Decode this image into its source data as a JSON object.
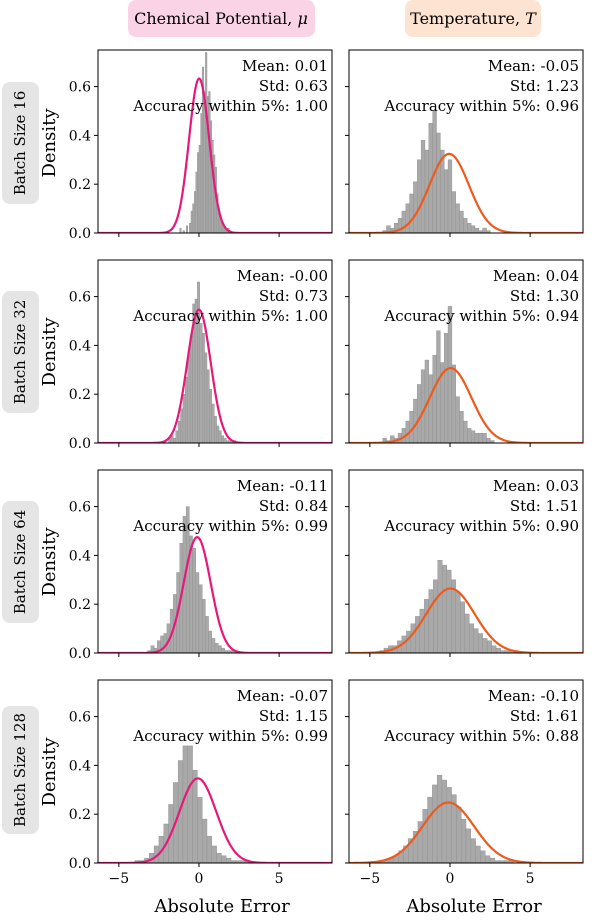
{
  "column_titles": [
    {
      "text": "Chemical Potential, ",
      "symbol": "μ",
      "bg": "#fbd3e7",
      "fg": "#e6007e"
    },
    {
      "text": "Temperature, ",
      "symbol": "T",
      "bg": "#fde3d1",
      "fg": "#f06a12"
    }
  ],
  "row_labels": [
    "Batch Size 16",
    "Batch Size 32",
    "Batch Size 64",
    "Batch Size 128"
  ],
  "ylabel": "Density",
  "xlabel": "Absolute Error",
  "colors": {
    "hist": "#a9a9a9",
    "hist_edge": "#8e8e8e",
    "mu_curve": "#e6197b",
    "t_curve": "#ee5a1c",
    "label_bg": "#e5e5e5"
  },
  "chart_data": [
    {
      "type": "bar",
      "row": 0,
      "col": 0,
      "ylim": [
        0,
        0.75
      ],
      "xlim": [
        -6.3,
        8.3
      ],
      "yticks": [
        "0.0",
        "0.2",
        "0.4",
        "0.6"
      ],
      "xticks": [],
      "stats": {
        "mean": "Mean: 0.01",
        "std": "Std: 0.63",
        "acc": "Accuracy within 5%: 1.00"
      },
      "curve": {
        "mean": 0.01,
        "std": 0.63
      },
      "bins": {
        "start": -1.2,
        "width": 0.1
      },
      "values": [
        0.02,
        0,
        0.01,
        0,
        0.03,
        0,
        0.04,
        0.09,
        0.12,
        0.17,
        0.25,
        0.33,
        0.36,
        0.49,
        0.68,
        0.58,
        0.74,
        0.56,
        0.58,
        0.46,
        0.38,
        0.32,
        0.27,
        0.16,
        0.1,
        0.07,
        0.04,
        0.03,
        0.02,
        0.01,
        0.02,
        0.01
      ]
    },
    {
      "type": "bar",
      "row": 0,
      "col": 1,
      "ylim": [
        0,
        0.75
      ],
      "xlim": [
        -6.3,
        8.3
      ],
      "yticks": [],
      "xticks": [],
      "stats": {
        "mean": "Mean: -0.05",
        "std": "Std: 1.23",
        "acc": "Accuracy within 5%: 0.96"
      },
      "curve": {
        "mean": -0.05,
        "std": 1.23
      },
      "bins": {
        "start": -4.2,
        "width": 0.24
      },
      "values": [
        0.01,
        0.03,
        0.02,
        0.04,
        0.06,
        0.09,
        0.12,
        0.16,
        0.21,
        0.3,
        0.38,
        0.34,
        0.45,
        0.5,
        0.41,
        0.34,
        0.26,
        0.3,
        0.17,
        0.12,
        0.09,
        0.06,
        0.04,
        0.03,
        0.02,
        0.01,
        0.02,
        0.01
      ]
    },
    {
      "type": "bar",
      "row": 1,
      "col": 0,
      "ylim": [
        0,
        0.75
      ],
      "xlim": [
        -6.3,
        8.3
      ],
      "yticks": [
        "0.0",
        "0.2",
        "0.4",
        "0.6"
      ],
      "xticks": [],
      "stats": {
        "mean": "Mean: -0.00",
        "std": "Std: 0.73",
        "acc": "Accuracy within 5%: 1.00"
      },
      "curve": {
        "mean": 0.0,
        "std": 0.73
      },
      "bins": {
        "start": -2.2,
        "width": 0.15
      },
      "values": [
        0.01,
        0,
        0.02,
        0.03,
        0.02,
        0.05,
        0.09,
        0.14,
        0.2,
        0.27,
        0.37,
        0.44,
        0.57,
        0.59,
        0.66,
        0.49,
        0.45,
        0.37,
        0.3,
        0.22,
        0.16,
        0.11,
        0.07,
        0.05,
        0.03,
        0.02,
        0.01,
        0.01,
        0.01,
        0.01
      ]
    },
    {
      "type": "bar",
      "row": 1,
      "col": 1,
      "ylim": [
        0,
        0.75
      ],
      "xlim": [
        -6.3,
        8.3
      ],
      "yticks": [],
      "xticks": [],
      "stats": {
        "mean": "Mean: 0.04",
        "std": "Std: 1.30",
        "acc": "Accuracy within 5%: 0.94"
      },
      "curve": {
        "mean": 0.04,
        "std": 1.3
      },
      "bins": {
        "start": -4.2,
        "width": 0.24
      },
      "values": [
        0.02,
        0.01,
        0.03,
        0.02,
        0.04,
        0.06,
        0.09,
        0.13,
        0.18,
        0.24,
        0.3,
        0.34,
        0.28,
        0.36,
        0.46,
        0.33,
        0.45,
        0.56,
        0.32,
        0.19,
        0.13,
        0.09,
        0.06,
        0.05,
        0.04,
        0.04,
        0.04,
        0.02,
        0.01
      ]
    },
    {
      "type": "bar",
      "row": 2,
      "col": 0,
      "ylim": [
        0,
        0.75
      ],
      "xlim": [
        -6.3,
        8.3
      ],
      "yticks": [
        "0.0",
        "0.2",
        "0.4",
        "0.6"
      ],
      "xticks": [],
      "stats": {
        "mean": "Mean: -0.11",
        "std": "Std: 0.84",
        "acc": "Accuracy within 5%: 0.99"
      },
      "curve": {
        "mean": -0.11,
        "std": 0.84
      },
      "bins": {
        "start": -3.2,
        "width": 0.2
      },
      "values": [
        0.01,
        0.03,
        0.02,
        0.05,
        0.07,
        0.08,
        0.12,
        0.18,
        0.24,
        0.33,
        0.45,
        0.56,
        0.6,
        0.48,
        0.43,
        0.33,
        0.28,
        0.22,
        0.15,
        0.09,
        0.06,
        0.04,
        0.03,
        0.02,
        0.01,
        0.01,
        0.01,
        0.01
      ]
    },
    {
      "type": "bar",
      "row": 2,
      "col": 1,
      "ylim": [
        0,
        0.75
      ],
      "xlim": [
        -6.3,
        8.3
      ],
      "yticks": [],
      "xticks": [],
      "stats": {
        "mean": "Mean: 0.03",
        "std": "Std: 1.51",
        "acc": "Accuracy within 5%: 0.90"
      },
      "curve": {
        "mean": 0.03,
        "std": 1.51
      },
      "bins": {
        "start": -4.4,
        "width": 0.28
      },
      "values": [
        0.01,
        0.02,
        0.03,
        0.03,
        0.05,
        0.07,
        0.09,
        0.12,
        0.15,
        0.18,
        0.22,
        0.26,
        0.3,
        0.38,
        0.36,
        0.34,
        0.3,
        0.25,
        0.21,
        0.16,
        0.12,
        0.1,
        0.08,
        0.06,
        0.05,
        0.03,
        0.02,
        0.01,
        0.01,
        0.01,
        0.01
      ]
    },
    {
      "type": "bar",
      "row": 3,
      "col": 0,
      "ylim": [
        0,
        0.75
      ],
      "xlim": [
        -6.3,
        8.3
      ],
      "yticks": [
        "0.0",
        "0.2",
        "0.4",
        "0.6"
      ],
      "xticks": [
        "−5",
        "0",
        "5"
      ],
      "stats": {
        "mean": "Mean: -0.07",
        "std": "Std: 1.15",
        "acc": "Accuracy within 5%: 0.99"
      },
      "curve": {
        "mean": -0.07,
        "std": 1.15
      },
      "bins": {
        "start": -4.0,
        "width": 0.3
      },
      "values": [
        0.01,
        0.01,
        0.02,
        0.04,
        0.07,
        0.11,
        0.16,
        0.24,
        0.33,
        0.42,
        0.48,
        0.48,
        0.38,
        0.27,
        0.18,
        0.11,
        0.07,
        0.04,
        0.03,
        0.02,
        0.01,
        0.01,
        0.01,
        0.01
      ]
    },
    {
      "type": "bar",
      "row": 3,
      "col": 1,
      "ylim": [
        0,
        0.75
      ],
      "xlim": [
        -6.3,
        8.3
      ],
      "yticks": [],
      "xticks": [
        "−5",
        "0",
        "5"
      ],
      "stats": {
        "mean": "Mean: -0.10",
        "std": "Std: 1.61",
        "acc": "Accuracy within 5%: 0.88"
      },
      "curve": {
        "mean": -0.1,
        "std": 1.61
      },
      "bins": {
        "start": -4.4,
        "width": 0.3
      },
      "values": [
        0.01,
        0.01,
        0.02,
        0.03,
        0.05,
        0.07,
        0.1,
        0.13,
        0.17,
        0.22,
        0.27,
        0.32,
        0.36,
        0.34,
        0.31,
        0.28,
        0.23,
        0.18,
        0.14,
        0.1,
        0.07,
        0.05,
        0.03,
        0.02,
        0.01,
        0.01,
        0.01,
        0.01
      ]
    }
  ]
}
